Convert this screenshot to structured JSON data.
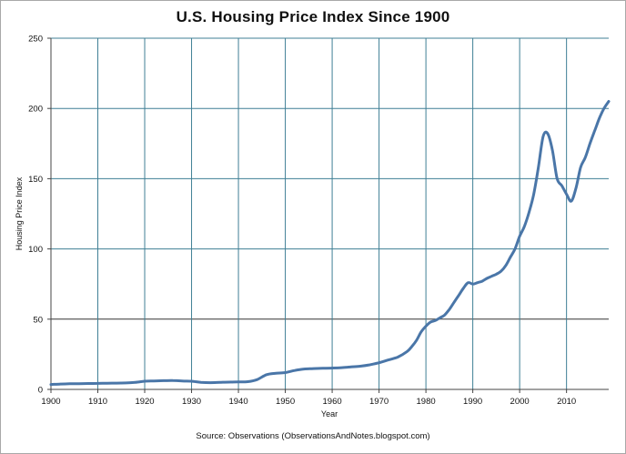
{
  "chart_data": {
    "type": "line",
    "title": "U.S. Housing Price Index Since 1900",
    "xlabel": "Year",
    "ylabel": "Housing Price Index",
    "source": "Source: Observations  (ObservationsAndNotes.blogspot.com)",
    "xlim": [
      1900,
      2019
    ],
    "ylim": [
      0,
      250
    ],
    "x_ticks": [
      1900,
      1910,
      1920,
      1930,
      1940,
      1950,
      1960,
      1970,
      1980,
      1990,
      2000,
      2010
    ],
    "y_ticks": [
      0,
      50,
      100,
      150,
      200,
      250
    ],
    "grid": true,
    "colors": {
      "line": "#4a76a8",
      "grid": "#3f7f95",
      "zero_line": "#333333",
      "axis": "#444444"
    },
    "series": [
      {
        "name": "Housing Price Index",
        "x": [
          1900,
          1902,
          1904,
          1906,
          1908,
          1910,
          1912,
          1914,
          1916,
          1918,
          1920,
          1922,
          1924,
          1926,
          1928,
          1930,
          1932,
          1934,
          1936,
          1938,
          1940,
          1942,
          1944,
          1946,
          1948,
          1950,
          1952,
          1954,
          1956,
          1958,
          1960,
          1962,
          1964,
          1966,
          1968,
          1970,
          1972,
          1974,
          1976,
          1977,
          1978,
          1979,
          1980,
          1981,
          1982,
          1983,
          1984,
          1985,
          1986,
          1987,
          1988,
          1989,
          1990,
          1991,
          1992,
          1993,
          1994,
          1995,
          1996,
          1997,
          1998,
          1999,
          2000,
          2001,
          2002,
          2003,
          2004,
          2005,
          2006,
          2007,
          2008,
          2009,
          2010,
          2011,
          2012,
          2013,
          2014,
          2015,
          2016,
          2017,
          2018,
          2019
        ],
        "values": [
          3.5,
          3.8,
          4.0,
          4.1,
          4.2,
          4.3,
          4.4,
          4.5,
          4.6,
          5.0,
          5.8,
          6.0,
          6.2,
          6.3,
          6.0,
          5.8,
          5.0,
          4.8,
          5.0,
          5.2,
          5.3,
          5.5,
          7.0,
          10.5,
          11.5,
          12.0,
          13.5,
          14.5,
          14.8,
          15.0,
          15.2,
          15.5,
          16.0,
          16.5,
          17.5,
          19.0,
          21.0,
          23.0,
          27.0,
          30.5,
          35.0,
          41.0,
          45.0,
          48.0,
          49.0,
          51.0,
          53.0,
          57.0,
          62.0,
          67.0,
          72.0,
          76.0,
          75.0,
          76.0,
          77.0,
          79.0,
          80.5,
          82.0,
          84.0,
          88.0,
          94.0,
          100.0,
          109.0,
          116.0,
          126.0,
          139.0,
          158.0,
          180.0,
          182.0,
          170.0,
          150.0,
          145.0,
          139.0,
          134.0,
          143.0,
          158.0,
          165.0,
          175.0,
          184.0,
          193.0,
          200.0,
          205.0
        ]
      }
    ]
  }
}
